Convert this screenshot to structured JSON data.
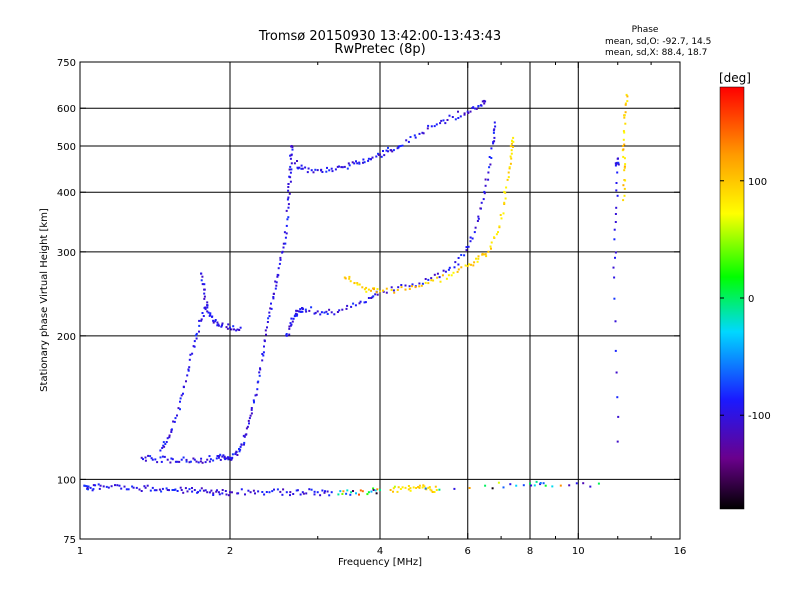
{
  "chart_data": {
    "type": "scatter",
    "title": "Tromsø 20150930 13:42:00-13:43:43",
    "subtitle": "RwPretec (8p)",
    "xlabel": "Frequency [MHz]",
    "ylabel": "Stationary phase Virtual Height [km]",
    "xscale": "log",
    "yscale": "log",
    "xlim": [
      1,
      16
    ],
    "ylim": [
      75,
      750
    ],
    "x_ticks": [
      1,
      2,
      4,
      6,
      8,
      10,
      16
    ],
    "x_tick_labels": [
      "1",
      "2",
      "4",
      "6",
      "8",
      "10",
      "16"
    ],
    "x_grid": [
      2,
      4,
      6,
      8,
      10
    ],
    "y_ticks": [
      75,
      100,
      200,
      300,
      400,
      500,
      600,
      750
    ],
    "y_tick_labels": [
      "75",
      "100",
      "200",
      "300",
      "400",
      "500",
      "600",
      "750"
    ],
    "y_grid": [
      100,
      200,
      300,
      400,
      500,
      600
    ],
    "grid": true,
    "legend": {
      "heading": "Phase",
      "lines": [
        "mean, sd,O: -92.7, 14.5",
        "mean, sd,X:  88.4, 18.7"
      ],
      "position": "top-right"
    },
    "colorbar": {
      "label": "[deg]",
      "range": [
        -180,
        180
      ],
      "ticks": [
        100,
        0,
        -100
      ],
      "tick_labels": [
        "100",
        "0",
        "-100"
      ],
      "colormap": "rainbow (black-purple-blue-cyan-green-yellow-orange-red)"
    },
    "series": [
      {
        "mode": "O",
        "phase_deg": -100,
        "traces": [
          {
            "points": [
              [
                1.02,
                97
              ],
              [
                1.05,
                96
              ],
              [
                1.1,
                97
              ],
              [
                1.2,
                97
              ],
              [
                1.3,
                96
              ],
              [
                1.4,
                96
              ],
              [
                1.5,
                95
              ],
              [
                1.6,
                95
              ],
              [
                1.7,
                95
              ],
              [
                1.8,
                94
              ],
              [
                1.9,
                94
              ],
              [
                2.0,
                94
              ],
              [
                2.2,
                94
              ],
              [
                2.4,
                94
              ],
              [
                2.6,
                94
              ],
              [
                2.8,
                94
              ],
              [
                3.0,
                94
              ],
              [
                3.2,
                94
              ]
            ]
          },
          {
            "points": [
              [
                1.33,
                111
              ],
              [
                1.4,
                110
              ],
              [
                1.5,
                110
              ],
              [
                1.6,
                110
              ],
              [
                1.7,
                110
              ],
              [
                1.8,
                110
              ],
              [
                1.9,
                111
              ],
              [
                1.95,
                111
              ],
              [
                2.0,
                111
              ],
              [
                2.05,
                113
              ],
              [
                2.1,
                117
              ],
              [
                2.15,
                124
              ],
              [
                2.2,
                136
              ],
              [
                2.25,
                150
              ],
              [
                2.3,
                170
              ],
              [
                2.35,
                195
              ],
              [
                2.4,
                220
              ],
              [
                2.45,
                245
              ],
              [
                2.5,
                268
              ],
              [
                2.55,
                300
              ],
              [
                2.6,
                340
              ],
              [
                2.62,
                390
              ],
              [
                2.64,
                430
              ],
              [
                2.65,
                470
              ],
              [
                2.66,
                500
              ]
            ]
          },
          {
            "points": [
              [
                1.45,
                115
              ],
              [
                1.5,
                122
              ],
              [
                1.55,
                132
              ],
              [
                1.6,
                150
              ],
              [
                1.65,
                170
              ],
              [
                1.7,
                195
              ],
              [
                1.75,
                215
              ],
              [
                1.8,
                235
              ]
            ]
          },
          {
            "points": [
              [
                1.75,
                270
              ],
              [
                1.78,
                250
              ],
              [
                1.8,
                225
              ],
              [
                1.85,
                215
              ],
              [
                1.9,
                210
              ],
              [
                2.0,
                208
              ],
              [
                2.1,
                208
              ]
            ]
          },
          {
            "points": [
              [
                2.8,
                228
              ],
              [
                3.0,
                225
              ],
              [
                3.2,
                224
              ],
              [
                3.5,
                230
              ],
              [
                3.8,
                240
              ],
              [
                4.0,
                248
              ],
              [
                4.5,
                255
              ],
              [
                5.0,
                262
              ],
              [
                5.5,
                275
              ],
              [
                5.9,
                295
              ],
              [
                6.2,
                330
              ],
              [
                6.4,
                380
              ],
              [
                6.6,
                440
              ],
              [
                6.75,
                510
              ],
              [
                6.8,
                560
              ]
            ]
          },
          {
            "points": [
              [
                2.6,
                200
              ],
              [
                2.65,
                210
              ],
              [
                2.7,
                220
              ],
              [
                2.75,
                225
              ],
              [
                2.8,
                228
              ]
            ]
          },
          {
            "points": [
              [
                2.7,
                460
              ],
              [
                2.8,
                448
              ],
              [
                3.0,
                445
              ],
              [
                3.2,
                448
              ],
              [
                3.4,
                452
              ],
              [
                3.6,
                460
              ],
              [
                3.8,
                470
              ],
              [
                4.0,
                480
              ],
              [
                4.2,
                490
              ],
              [
                4.4,
                500
              ],
              [
                4.8,
                530
              ],
              [
                5.2,
                555
              ],
              [
                5.6,
                575
              ],
              [
                6.0,
                590
              ],
              [
                6.3,
                605
              ],
              [
                6.5,
                620
              ]
            ]
          },
          {
            "points": [
              [
                11.9,
                455
              ],
              [
                12.0,
                470
              ],
              [
                11.9,
                360
              ],
              [
                11.8,
                265
              ],
              [
                12.0,
                120
              ]
            ]
          }
        ]
      },
      {
        "mode": "X",
        "phase_deg": 95,
        "traces": [
          {
            "points": [
              [
                3.4,
                265
              ],
              [
                3.6,
                258
              ],
              [
                3.8,
                250
              ],
              [
                4.0,
                248
              ],
              [
                4.5,
                250
              ],
              [
                5.0,
                258
              ],
              [
                5.5,
                268
              ],
              [
                6.0,
                280
              ],
              [
                6.3,
                290
              ],
              [
                6.6,
                300
              ],
              [
                6.9,
                330
              ],
              [
                7.1,
                380
              ],
              [
                7.25,
                440
              ],
              [
                7.35,
                490
              ],
              [
                7.4,
                520
              ]
            ]
          },
          {
            "points": [
              [
                4.2,
                95
              ],
              [
                4.5,
                96
              ],
              [
                4.8,
                96
              ],
              [
                5.0,
                96
              ],
              [
                5.2,
                95
              ]
            ]
          },
          {
            "points": [
              [
                12.5,
                640
              ],
              [
                12.4,
                580
              ],
              [
                12.3,
                500
              ],
              [
                12.4,
                450
              ],
              [
                12.3,
                385
              ]
            ]
          }
        ]
      },
      {
        "mode": "mixed",
        "phase_deg": 0,
        "traces": [
          {
            "points": [
              [
                3.3,
                93
              ],
              [
                3.5,
                94
              ],
              [
                3.8,
                94
              ],
              [
                4.0,
                95
              ],
              [
                6.5,
                97
              ],
              [
                8.0,
                98
              ],
              [
                8.6,
                97
              ],
              [
                11.0,
                98
              ]
            ]
          }
        ]
      }
    ]
  }
}
